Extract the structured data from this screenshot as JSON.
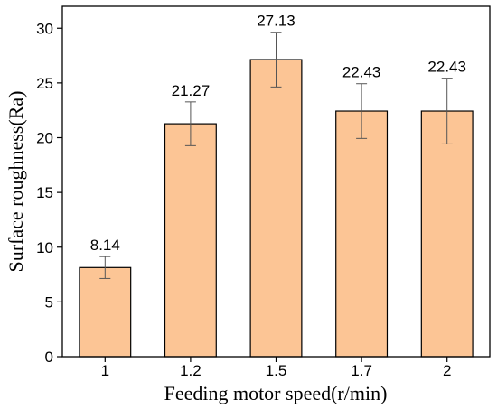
{
  "chart_data": {
    "type": "bar",
    "categories": [
      "1",
      "1.2",
      "1.5",
      "1.7",
      "2"
    ],
    "values": [
      8.14,
      21.27,
      27.13,
      22.43,
      22.43
    ],
    "error": [
      1.0,
      2.0,
      2.5,
      2.5,
      3.0
    ],
    "data_labels": [
      "8.14",
      "21.27",
      "27.13",
      "22.43",
      "22.43"
    ],
    "xlabel": "Feeding motor speed(r/min)",
    "ylabel": "Surface roughness(Ra)",
    "ylim": [
      0,
      32
    ],
    "yticks": [
      0,
      5,
      10,
      15,
      20,
      25,
      30
    ],
    "ytick_labels": [
      "0",
      "5",
      "10",
      "15",
      "20",
      "25",
      "30"
    ],
    "bar_color": "#FCC595",
    "grid": false
  }
}
